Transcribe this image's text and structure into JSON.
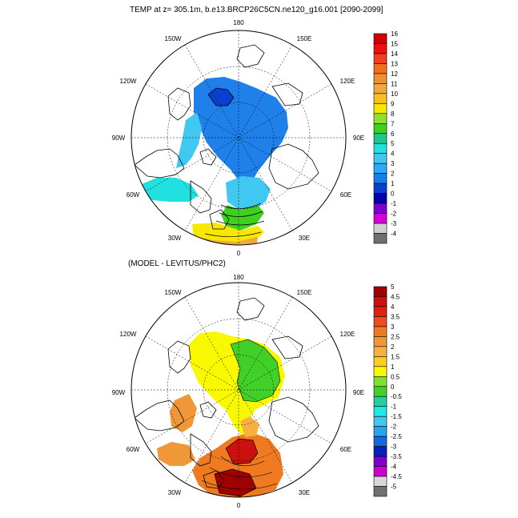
{
  "figure": {
    "top_title": "TEMP at z= 305.1m, b.e13.BRCP26C5CN.ne120_g16.001 [2090-2099]",
    "bottom_title": "(MODEL - LEVITUS/PHC2)"
  },
  "map_labels": {
    "lon_180": "180",
    "lon_150w": "150W",
    "lon_150e": "150E",
    "lon_120w": "120W",
    "lon_120e": "120E",
    "lon_90w": "90W",
    "lon_90e": "90E",
    "lon_60w": "60W",
    "lon_60e": "60E",
    "lon_30w": "30W",
    "lon_30e": "30E",
    "lon_0": "0"
  },
  "top_colorbar": {
    "labels": [
      "16",
      "15",
      "14",
      "13",
      "12",
      "11",
      "10",
      "9",
      "8",
      "7",
      "6",
      "5",
      "4",
      "3",
      "2",
      "1",
      "0",
      "-1",
      "-2",
      "-3",
      "-4"
    ],
    "colors": [
      "#d00000",
      "#ee1010",
      "#f04020",
      "#f07020",
      "#f09030",
      "#f0a840",
      "#f8c020",
      "#f8e800",
      "#90e030",
      "#40d020",
      "#20c890",
      "#20e0e0",
      "#40c8f0",
      "#2aaaf8",
      "#1480e8",
      "#0a40d0",
      "#0000b0",
      "#8000d0",
      "#d800d8",
      "#d0d0d0",
      "#707070"
    ]
  },
  "bottom_colorbar": {
    "labels": [
      "5",
      "4.5",
      "4",
      "3.5",
      "3",
      "2.5",
      "2",
      "1.5",
      "1",
      "0.5",
      "0",
      "-0.5",
      "-1",
      "-1.5",
      "-2",
      "-2.5",
      "-3",
      "-3.5",
      "-4",
      "-4.5",
      "-5"
    ],
    "colors": [
      "#a00000",
      "#cc1010",
      "#e02010",
      "#f04a20",
      "#f07a20",
      "#f09838",
      "#f8b040",
      "#f8d020",
      "#f8f800",
      "#80e030",
      "#40d028",
      "#20d0a0",
      "#20e8e8",
      "#40c8f0",
      "#2aa0f0",
      "#1468e0",
      "#0820c0",
      "#8000d0",
      "#d000d0",
      "#d8d8d8",
      "#707070"
    ]
  }
}
